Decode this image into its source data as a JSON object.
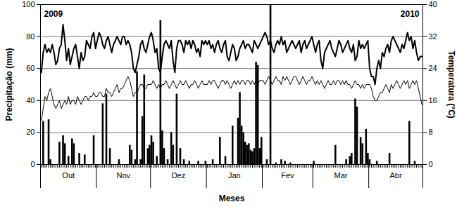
{
  "chart_data": {
    "type": "bar",
    "x_label": "Meses",
    "y_label": "Precipitação (mm)",
    "y2_label": "Temperatura (°C)",
    "annotations": [
      "2009",
      "2010"
    ],
    "grid": true,
    "xlim": [
      0.5,
      212.5
    ],
    "xticks": [
      {
        "value": 16,
        "label": "Out"
      },
      {
        "value": 46.5,
        "label": "Nov"
      },
      {
        "value": 77,
        "label": "Dez"
      },
      {
        "value": 108,
        "label": "Jan"
      },
      {
        "value": 137.5,
        "label": "Fev"
      },
      {
        "value": 167,
        "label": "Mar"
      },
      {
        "value": 197.5,
        "label": "Abr"
      }
    ],
    "month_bounds": [
      0.5,
      31.5,
      61.5,
      92.5,
      123.5,
      151.5,
      182.5,
      212.5
    ],
    "ylim": [
      0,
      100
    ],
    "yticks": [
      0,
      20,
      40,
      60,
      80,
      100
    ],
    "y2lim": [
      0,
      40
    ],
    "y2ticks": [
      0,
      8,
      16,
      24,
      32,
      40
    ],
    "x": [
      1,
      2,
      3,
      4,
      5,
      6,
      7,
      8,
      9,
      10,
      11,
      12,
      13,
      14,
      15,
      16,
      17,
      18,
      19,
      20,
      21,
      22,
      23,
      24,
      25,
      26,
      27,
      28,
      29,
      30,
      31,
      32,
      33,
      34,
      35,
      36,
      37,
      38,
      39,
      40,
      41,
      42,
      43,
      44,
      45,
      46,
      47,
      48,
      49,
      50,
      51,
      52,
      53,
      54,
      55,
      56,
      57,
      58,
      59,
      60,
      61,
      62,
      63,
      64,
      65,
      66,
      67,
      68,
      69,
      70,
      71,
      72,
      73,
      74,
      75,
      76,
      77,
      78,
      79,
      80,
      81,
      82,
      83,
      84,
      85,
      86,
      87,
      88,
      89,
      90,
      91,
      92,
      93,
      94,
      95,
      96,
      97,
      98,
      99,
      100,
      101,
      102,
      103,
      104,
      105,
      106,
      107,
      108,
      109,
      110,
      111,
      112,
      113,
      114,
      115,
      116,
      117,
      118,
      119,
      120,
      121,
      122,
      123,
      124,
      125,
      126,
      127,
      128,
      129,
      130,
      131,
      132,
      133,
      134,
      135,
      136,
      137,
      138,
      139,
      140,
      141,
      142,
      143,
      144,
      145,
      146,
      147,
      148,
      149,
      150,
      151,
      152,
      153,
      154,
      155,
      156,
      157,
      158,
      159,
      160,
      161,
      162,
      163,
      164,
      165,
      166,
      167,
      168,
      169,
      170,
      171,
      172,
      173,
      174,
      175,
      176,
      177,
      178,
      179,
      180,
      181,
      182,
      183,
      184,
      185,
      186,
      187,
      188,
      189,
      190,
      191,
      192,
      193,
      194,
      195,
      196,
      197,
      198,
      199,
      200,
      201,
      202,
      203,
      204,
      205,
      206,
      207,
      208,
      209,
      210,
      211,
      212
    ],
    "series": [
      {
        "type": "bar",
        "axis": "y",
        "color": "#000000",
        "values": [
          0,
          27,
          0,
          0,
          28,
          3,
          0,
          0,
          0,
          0,
          14,
          0,
          18,
          13,
          0,
          5,
          0,
          16,
          13,
          0,
          0,
          7,
          0,
          0,
          6,
          0,
          0,
          0,
          0,
          18,
          0,
          0,
          0,
          0,
          38,
          0,
          44,
          0,
          10,
          0,
          0,
          0,
          0,
          3,
          0,
          0,
          0,
          0,
          0,
          12,
          9,
          0,
          3,
          58,
          0,
          3,
          30,
          56,
          0,
          10,
          12,
          18,
          14,
          0,
          5,
          0,
          90,
          21,
          10,
          0,
          3,
          0,
          20,
          12,
          0,
          44,
          0,
          10,
          0,
          3,
          0,
          0,
          2,
          0,
          0,
          0,
          0,
          2,
          0,
          0,
          0,
          2,
          0,
          0,
          0,
          3,
          0,
          0,
          0,
          17,
          0,
          0,
          5,
          0,
          0,
          0,
          24,
          0,
          0,
          29,
          45,
          24,
          20,
          14,
          12,
          13,
          9,
          8,
          10,
          64,
          62,
          10,
          17,
          0,
          0,
          3,
          0,
          100,
          0,
          0,
          1,
          0,
          0,
          3,
          0,
          2,
          0,
          0,
          1,
          0,
          0,
          0,
          0,
          0,
          0,
          0,
          0,
          0,
          0,
          0,
          0,
          2,
          0,
          0,
          0,
          0,
          0,
          0,
          0,
          0,
          0,
          0,
          0,
          12,
          0,
          0,
          0,
          0,
          0,
          3,
          0,
          5,
          7,
          0,
          41,
          36,
          0,
          17,
          13,
          0,
          22,
          7,
          3,
          0,
          0,
          0,
          2,
          0,
          0,
          0,
          0,
          0,
          0,
          7,
          0,
          0,
          0,
          0,
          0,
          0,
          0,
          0,
          0,
          0,
          27,
          0,
          0,
          2,
          0,
          0,
          0,
          0
        ]
      },
      {
        "type": "line",
        "axis": "y2",
        "color": "#000000",
        "line_style": "bold",
        "values": [
          23,
          28,
          30,
          28,
          29,
          28,
          30,
          28,
          25,
          26,
          29,
          30,
          35,
          31,
          26,
          29,
          25,
          27,
          29,
          30,
          27,
          24,
          28,
          26,
          27,
          31,
          30,
          29,
          32,
          33,
          29,
          31,
          33,
          32,
          30,
          29,
          31,
          32,
          30,
          28,
          30,
          31,
          32,
          31,
          30,
          32,
          32,
          30,
          31,
          30,
          28,
          24,
          23,
          25,
          27,
          30,
          31,
          29,
          28,
          30,
          32,
          33,
          31,
          28,
          29,
          24,
          23,
          27,
          30,
          31,
          30,
          29,
          31,
          26,
          23,
          29,
          31,
          31,
          30,
          28,
          31,
          30,
          31,
          29,
          31,
          30,
          28,
          29,
          27,
          31,
          30,
          31,
          30,
          31,
          29,
          30,
          28,
          30,
          31,
          29,
          28,
          30,
          31,
          27,
          26,
          28,
          30,
          29,
          26,
          27,
          29,
          30,
          31,
          29,
          30,
          30,
          29,
          28,
          31,
          30,
          29,
          30,
          31,
          32,
          33,
          32,
          30,
          31,
          29,
          28,
          30,
          31,
          30,
          32,
          30,
          31,
          28,
          29,
          30,
          31,
          30,
          29,
          30,
          31,
          28,
          30,
          31,
          29,
          30,
          31,
          32,
          30,
          28,
          30,
          31,
          26,
          24,
          28,
          29,
          30,
          31,
          29,
          28,
          27,
          29,
          31,
          30,
          28,
          29,
          30,
          31,
          29,
          28,
          30,
          26,
          27,
          31,
          29,
          30,
          29,
          30,
          31,
          24,
          22,
          22,
          20,
          24,
          26,
          24,
          28,
          27,
          29,
          30,
          28,
          31,
          32,
          31,
          30,
          29,
          28,
          30,
          29,
          31,
          33,
          31,
          32,
          29,
          31,
          28,
          26,
          27,
          27
        ]
      },
      {
        "type": "line",
        "axis": "y2",
        "color": "#000000",
        "line_style": "thin",
        "values": [
          11,
          14,
          17,
          16,
          18,
          19,
          17,
          15,
          14,
          15,
          16,
          14,
          15,
          16,
          15,
          17,
          15,
          16,
          16,
          15,
          17,
          16,
          15,
          16,
          17,
          17,
          16,
          17,
          17,
          18,
          17,
          17,
          18,
          18,
          17,
          17,
          19,
          18,
          18,
          17,
          18,
          19,
          20,
          18,
          19,
          19,
          20,
          21,
          22,
          21,
          19,
          17,
          18,
          18,
          19,
          20,
          20,
          19,
          19,
          20,
          20,
          20,
          21,
          20,
          19,
          20,
          19,
          20,
          20,
          21,
          20,
          19,
          20,
          21,
          20,
          19,
          20,
          21,
          20,
          20,
          21,
          20,
          19,
          20,
          20,
          21,
          20,
          19,
          20,
          21,
          20,
          20,
          20,
          21,
          20,
          21,
          21,
          20,
          19,
          20,
          21,
          21,
          20,
          21,
          20,
          19,
          20,
          21,
          20,
          21,
          20,
          21,
          21,
          20,
          21,
          21,
          20,
          21,
          20,
          21,
          20,
          21,
          21,
          21,
          20,
          21,
          22,
          21,
          20,
          21,
          22,
          21,
          21,
          20,
          22,
          21,
          22,
          21,
          20,
          21,
          22,
          22,
          21,
          20,
          21,
          22,
          21,
          20,
          21,
          21,
          22,
          21,
          20,
          21,
          20,
          21,
          20,
          19,
          20,
          21,
          20,
          20,
          21,
          20,
          21,
          21,
          20,
          21,
          20,
          21,
          20,
          20,
          19,
          20,
          21,
          20,
          20,
          19,
          20,
          19,
          20,
          20,
          20,
          19,
          17,
          16,
          16,
          17,
          18,
          18,
          19,
          20,
          19,
          18,
          20,
          19,
          20,
          21,
          20,
          19,
          20,
          21,
          20,
          21,
          19,
          20,
          21,
          20,
          21,
          19,
          17,
          15
        ]
      }
    ]
  }
}
